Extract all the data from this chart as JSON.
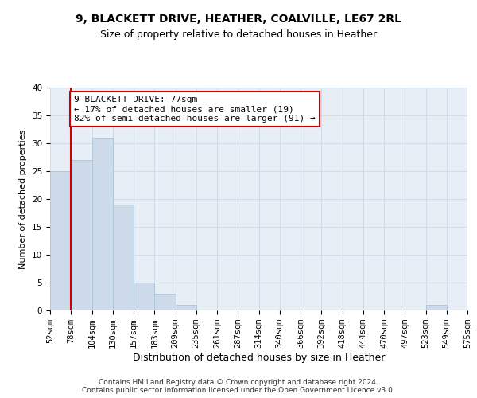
{
  "title1": "9, BLACKETT DRIVE, HEATHER, COALVILLE, LE67 2RL",
  "title2": "Size of property relative to detached houses in Heather",
  "xlabel": "Distribution of detached houses by size in Heather",
  "ylabel": "Number of detached properties",
  "bar_values": [
    25,
    27,
    31,
    19,
    5,
    3,
    1,
    0,
    0,
    0,
    0,
    0,
    0,
    0,
    0,
    0,
    0,
    0,
    1,
    0
  ],
  "bin_labels": [
    "52sqm",
    "78sqm",
    "104sqm",
    "130sqm",
    "157sqm",
    "183sqm",
    "209sqm",
    "235sqm",
    "261sqm",
    "287sqm",
    "314sqm",
    "340sqm",
    "366sqm",
    "392sqm",
    "418sqm",
    "444sqm",
    "470sqm",
    "497sqm",
    "523sqm",
    "549sqm",
    "575sqm"
  ],
  "n_bins": 20,
  "bar_color": "#ccdaea",
  "bar_edge_color": "#b0c8dc",
  "vline_x": 1,
  "vline_color": "#cc0000",
  "annotation_text": "9 BLACKETT DRIVE: 77sqm\n← 17% of detached houses are smaller (19)\n82% of semi-detached houses are larger (91) →",
  "annotation_box_color": "#ffffff",
  "annotation_box_edge": "#cc0000",
  "ylim": [
    0,
    40
  ],
  "yticks": [
    0,
    5,
    10,
    15,
    20,
    25,
    30,
    35,
    40
  ],
  "grid_color": "#d0dce8",
  "bg_color": "#e8eef6",
  "footer": "Contains HM Land Registry data © Crown copyright and database right 2024.\nContains public sector information licensed under the Open Government Licence v3.0.",
  "title1_fontsize": 10,
  "title2_fontsize": 9,
  "xlabel_fontsize": 9,
  "ylabel_fontsize": 8,
  "tick_fontsize": 7.5,
  "annotation_fontsize": 8,
  "footer_fontsize": 6.5
}
